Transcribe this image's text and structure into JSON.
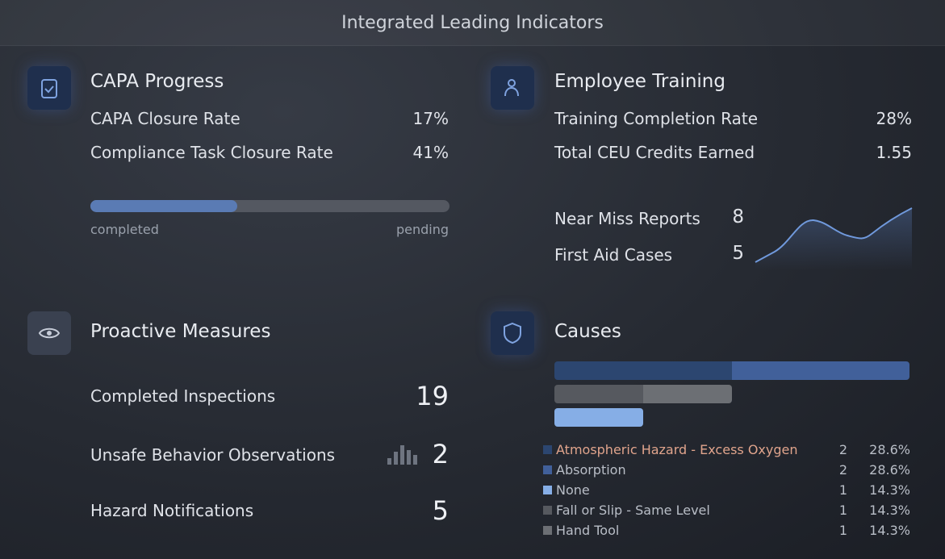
{
  "header": {
    "title": "Integrated Leading Indicators"
  },
  "capa": {
    "title": "CAPA Progress",
    "metrics": [
      {
        "label": "CAPA Closure Rate",
        "value": "17%"
      },
      {
        "label": "Compliance Task Closure Rate",
        "value": "41%"
      }
    ],
    "progress": {
      "start_label": "completed",
      "end_label": "pending"
    }
  },
  "training": {
    "title": "Employee Training",
    "metrics": [
      {
        "label": "Training Completion Rate",
        "value": "28%"
      },
      {
        "label": "Total CEU Credits Earned",
        "value": "1.55"
      }
    ],
    "incidents": [
      {
        "label": "Near Miss Reports",
        "value": 8
      },
      {
        "label": "First Aid Cases",
        "value": 5
      }
    ]
  },
  "proactive": {
    "title": "Proactive Measures",
    "metrics": [
      {
        "label": "Completed Inspections",
        "value": 19
      },
      {
        "label": "Unsafe Behavior Observations",
        "value": 2
      },
      {
        "label": "Hazard Notifications",
        "value": 5
      }
    ]
  },
  "causes": {
    "title": "Causes",
    "items": [
      {
        "name": "Atmospheric Hazard - Excess Oxygen",
        "count": 2,
        "percent": "28.6%",
        "color": "#2c4670"
      },
      {
        "name": "Absorption",
        "count": 2,
        "percent": "28.6%",
        "color": "#41609a"
      },
      {
        "name": "None",
        "count": 1,
        "percent": "14.3%",
        "color": "#86aee6"
      },
      {
        "name": "Fall or Slip - Same Level",
        "count": 1,
        "percent": "14.3%",
        "color": "#56595f"
      },
      {
        "name": "Hand Tool",
        "count": 1,
        "percent": "14.3%",
        "color": "#6c6f74"
      }
    ]
  }
}
